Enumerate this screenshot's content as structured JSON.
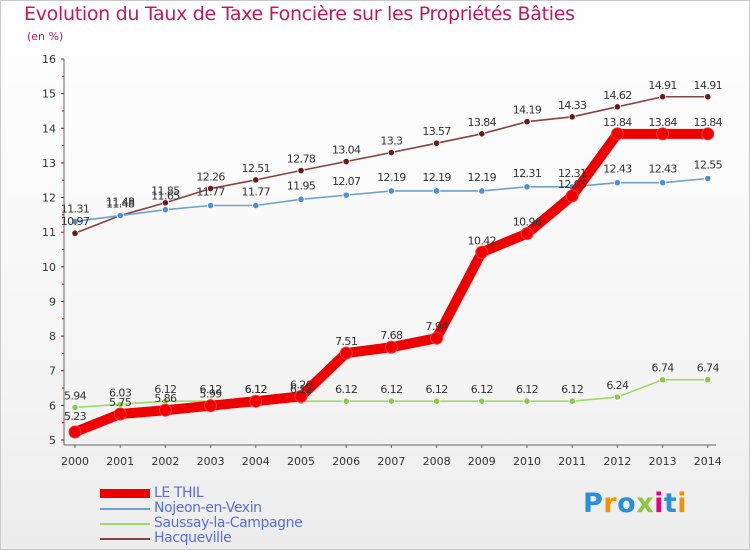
{
  "header": {
    "title": "Evolution du Taux de Taxe Foncière sur les Propriétés Bâties",
    "subtitle": "(en %)"
  },
  "logo": {
    "letters": [
      "P",
      "r",
      "o",
      "x",
      "i",
      "t",
      "i"
    ],
    "letter_colors": [
      "#2a8fd8",
      "#f39200",
      "#2a8fd8",
      "#8cc63f",
      "#e6007e",
      "#2a8fd8",
      "#f39200"
    ]
  },
  "chart_data": {
    "type": "line",
    "title": "Evolution du Taux de Taxe Foncière sur les Propriétés Bâties",
    "ylabel": "(en %)",
    "xlabel": "",
    "x": [
      "2000",
      "2001",
      "2002",
      "2003",
      "2004",
      "2005",
      "2006",
      "2007",
      "2008",
      "2009",
      "2010",
      "2011",
      "2012",
      "2013",
      "2014"
    ],
    "ylim": [
      5,
      16
    ],
    "yticks": [
      "5",
      "6",
      "7",
      "8",
      "9",
      "10",
      "11",
      "12",
      "13",
      "14",
      "15",
      "16"
    ],
    "grid": false,
    "legend_position": "bottom-left",
    "series": [
      {
        "name": "LE THIL",
        "color": "#ee0000",
        "marker_color": "#ee0000",
        "width": "thick",
        "values": [
          5.23,
          5.75,
          5.86,
          5.99,
          6.12,
          6.26,
          7.51,
          7.68,
          7.94,
          10.42,
          10.96,
          12.05,
          13.84,
          13.84,
          13.84
        ],
        "labels": [
          "5.23",
          "5.75",
          "5.86",
          "5.99",
          "6.12",
          "6.26",
          "7.51",
          "7.68",
          "7.94",
          "10.42",
          "10.96",
          "12.05",
          "13.84",
          "13.84",
          "13.84"
        ]
      },
      {
        "name": "Nojeon-en-Vexin",
        "color": "#6fa0d0",
        "marker_color": "#4a90d9",
        "width": "thin",
        "values": [
          11.31,
          11.48,
          11.65,
          11.77,
          11.77,
          11.95,
          12.07,
          12.19,
          12.19,
          12.19,
          12.31,
          12.31,
          12.43,
          12.43,
          12.55
        ],
        "labels": [
          "11.31",
          "11.48",
          "11.65",
          "11.77",
          "11.77",
          "11.95",
          "12.07",
          "12.19",
          "12.19",
          "12.19",
          "12.31",
          "12.31",
          "12.43",
          "12.43",
          "12.55"
        ]
      },
      {
        "name": "Saussay-la-Campagne",
        "color": "#99dd66",
        "marker_color": "#88cc44",
        "width": "thin",
        "values": [
          5.94,
          6.03,
          6.12,
          6.12,
          6.12,
          6.12,
          6.12,
          6.12,
          6.12,
          6.12,
          6.12,
          6.12,
          6.24,
          6.74,
          6.74
        ],
        "labels": [
          "5.94",
          "6.03",
          "6.12",
          "6.12",
          "6.12",
          "6.12",
          "6.12",
          "6.12",
          "6.12",
          "6.12",
          "6.12",
          "6.12",
          "6.24",
          "6.74",
          "6.74"
        ]
      },
      {
        "name": "Hacqueville",
        "color": "#8b4040",
        "marker_color": "#6b1a1a",
        "width": "thin",
        "values": [
          10.97,
          11.48,
          11.85,
          12.26,
          12.51,
          12.78,
          13.04,
          13.3,
          13.57,
          13.84,
          14.19,
          14.33,
          14.62,
          14.91,
          14.91
        ],
        "labels": [
          "10.97",
          "11.48",
          "11.85",
          "12.26",
          "12.51",
          "12.78",
          "13.04",
          "13.3",
          "13.57",
          "13.84",
          "14.19",
          "14.33",
          "14.62",
          "14.91",
          "14.91"
        ]
      }
    ]
  }
}
